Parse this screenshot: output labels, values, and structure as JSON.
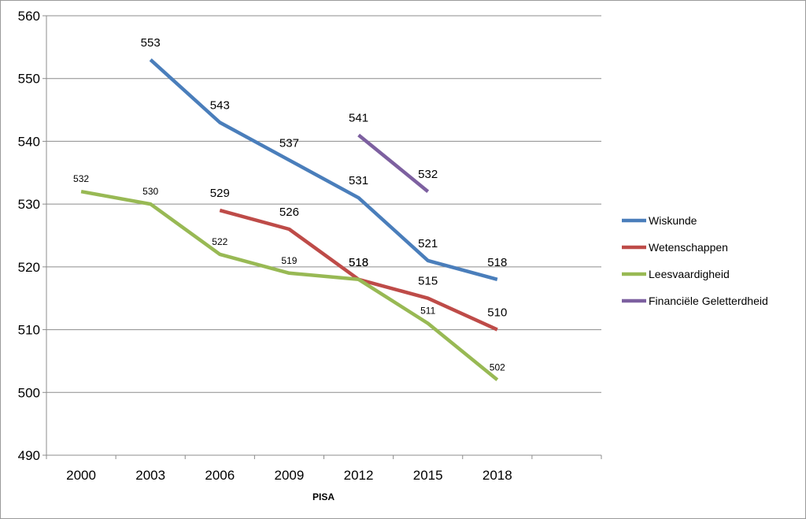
{
  "chart_data": {
    "type": "line",
    "title": "",
    "xlabel": "PISA",
    "ylabel": "",
    "categories": [
      "2000",
      "2003",
      "2006",
      "2009",
      "2012",
      "2015",
      "2018"
    ],
    "ylim": [
      490,
      560
    ],
    "yticks": [
      490,
      500,
      510,
      520,
      530,
      540,
      550,
      560
    ],
    "grid": "horizontal",
    "legend_position": "right",
    "series": [
      {
        "name": "Wiskunde",
        "color": "#4a7ebb",
        "values": [
          null,
          553,
          543,
          537,
          531,
          521,
          518
        ]
      },
      {
        "name": "Wetenschappen",
        "color": "#be4b48",
        "values": [
          null,
          null,
          529,
          526,
          518,
          515,
          510
        ]
      },
      {
        "name": "Leesvaardigheid",
        "color": "#98b954",
        "values": [
          532,
          530,
          522,
          519,
          518,
          511,
          502
        ]
      },
      {
        "name": "Financiële Geletterdheid",
        "color": "#7d60a0",
        "values": [
          null,
          null,
          null,
          null,
          541,
          532,
          null
        ]
      }
    ],
    "data_labels": [
      {
        "series": 0,
        "index": 1,
        "text": "553",
        "size": "big"
      },
      {
        "series": 0,
        "index": 2,
        "text": "543",
        "size": "big"
      },
      {
        "series": 0,
        "index": 3,
        "text": "537",
        "size": "big"
      },
      {
        "series": 0,
        "index": 4,
        "text": "531",
        "size": "big"
      },
      {
        "series": 0,
        "index": 5,
        "text": "521",
        "size": "big"
      },
      {
        "series": 0,
        "index": 6,
        "text": "518",
        "size": "big"
      },
      {
        "series": 1,
        "index": 2,
        "text": "529",
        "size": "big"
      },
      {
        "series": 1,
        "index": 3,
        "text": "526",
        "size": "big"
      },
      {
        "series": 1,
        "index": 4,
        "text": "518",
        "size": "big"
      },
      {
        "series": 1,
        "index": 5,
        "text": "515",
        "size": "big"
      },
      {
        "series": 1,
        "index": 6,
        "text": "510",
        "size": "big"
      },
      {
        "series": 2,
        "index": 0,
        "text": "532",
        "size": "small"
      },
      {
        "series": 2,
        "index": 1,
        "text": "530",
        "size": "small"
      },
      {
        "series": 2,
        "index": 2,
        "text": "522",
        "size": "small"
      },
      {
        "series": 2,
        "index": 3,
        "text": "519",
        "size": "small"
      },
      {
        "series": 2,
        "index": 4,
        "text": "518",
        "size": "big"
      },
      {
        "series": 2,
        "index": 5,
        "text": "511",
        "size": "small"
      },
      {
        "series": 2,
        "index": 6,
        "text": "502",
        "size": "small"
      },
      {
        "series": 3,
        "index": 4,
        "text": "541",
        "size": "big"
      },
      {
        "series": 3,
        "index": 5,
        "text": "532",
        "size": "big"
      }
    ]
  }
}
